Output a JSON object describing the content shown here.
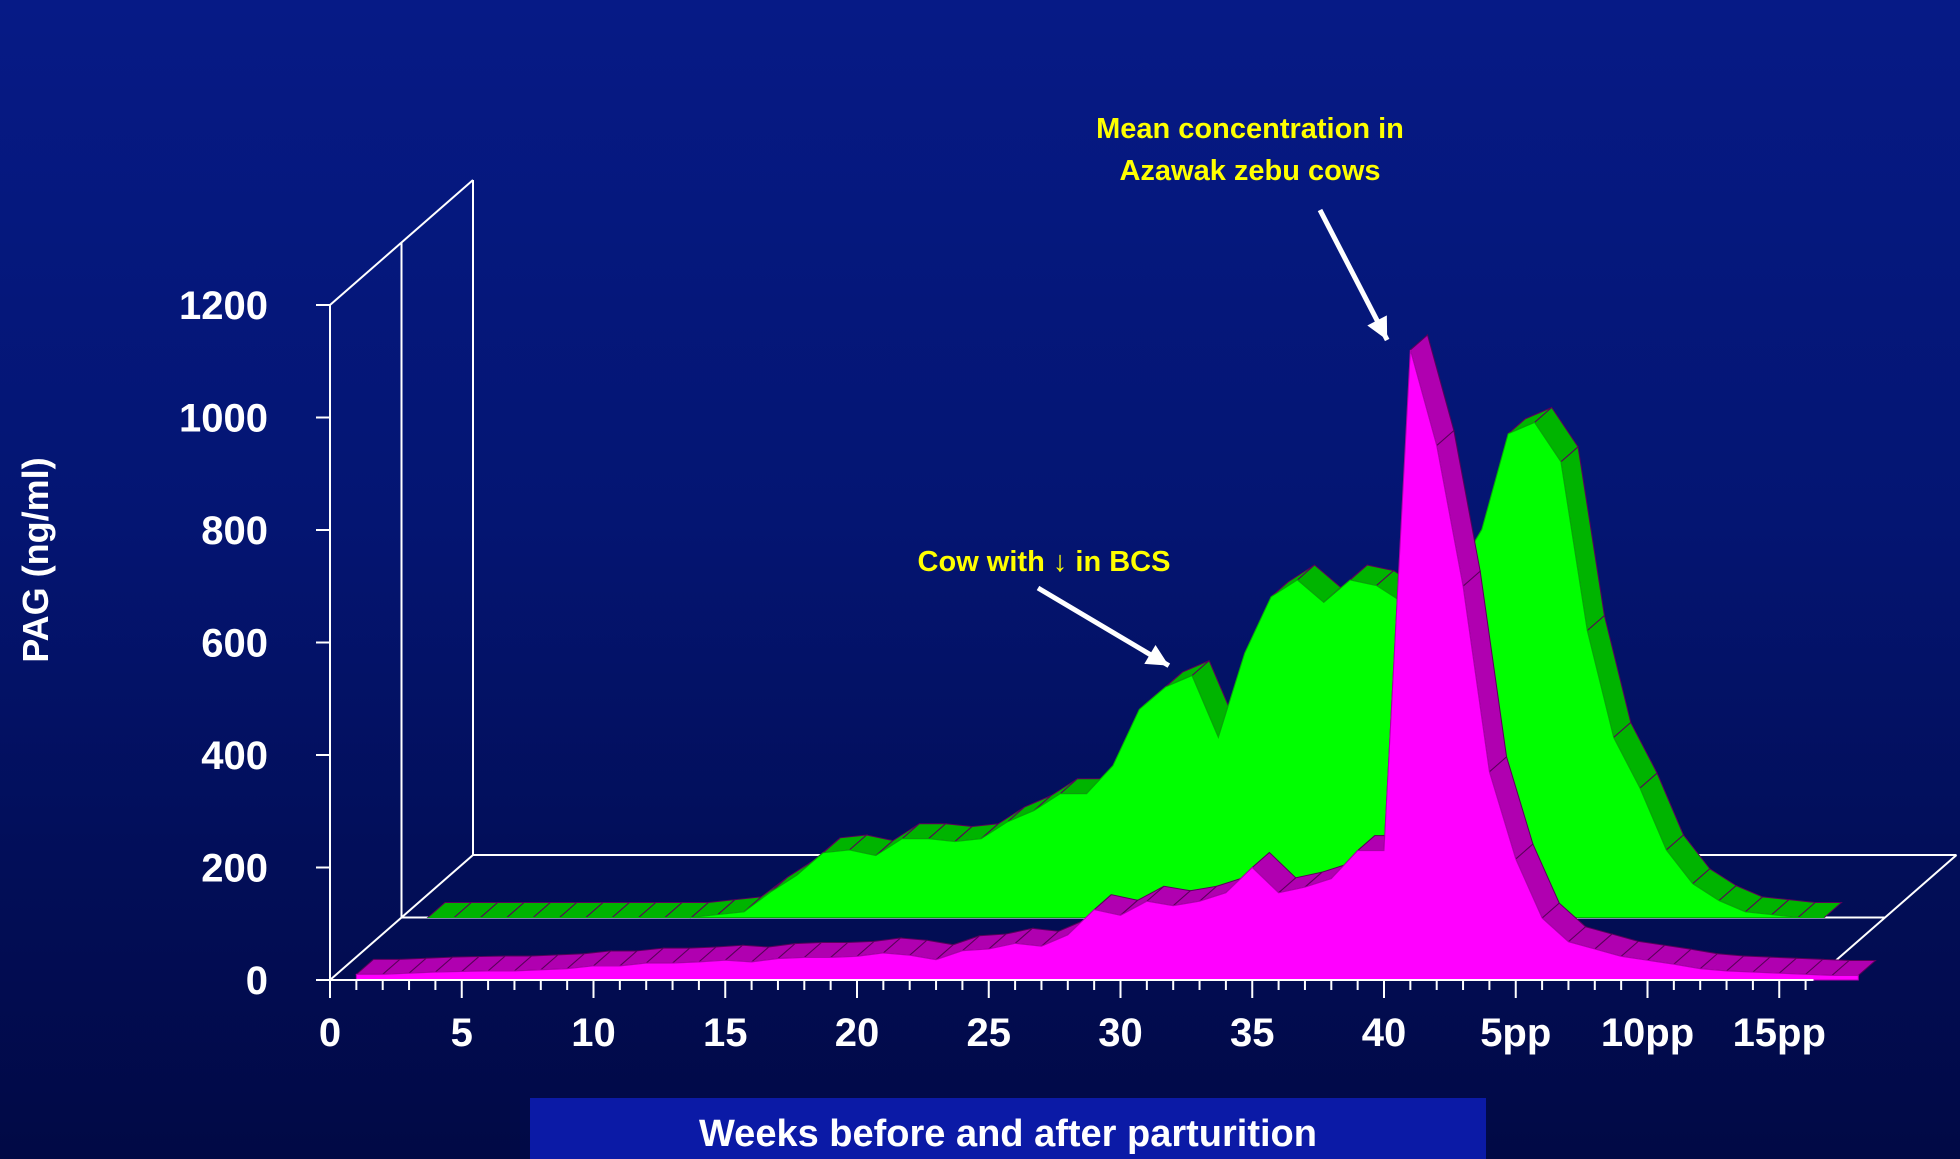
{
  "chart_data": {
    "type": "area",
    "style": "3d-ribbon",
    "ylabel": "PAG (ng/ml)",
    "xlabel": "Weeks before and after parturition",
    "ylim": [
      0,
      1200
    ],
    "y_ticks": [
      "0",
      "200",
      "400",
      "600",
      "800",
      "1000",
      "1200"
    ],
    "y_tick_values": [
      0,
      200,
      400,
      600,
      800,
      1000,
      1200
    ],
    "x_tick_labels": [
      "0",
      "5",
      "10",
      "15",
      "20",
      "25",
      "30",
      "35",
      "40",
      "5pp",
      "10pp",
      "15pp"
    ],
    "x_tick_weeks": [
      0,
      5,
      10,
      15,
      20,
      25,
      30,
      35,
      40,
      45,
      50,
      55
    ],
    "grid": false,
    "legend": "none",
    "series": [
      {
        "id": "magenta",
        "color": "#ff00ff",
        "side_color": "#b000b0",
        "weeks": [
          1,
          2,
          3,
          4,
          5,
          6,
          7,
          8,
          9,
          10,
          11,
          12,
          13,
          14,
          15,
          16,
          17,
          18,
          19,
          20,
          21,
          22,
          23,
          24,
          25,
          26,
          27,
          28,
          29,
          30,
          31,
          32,
          33,
          34,
          35,
          36,
          37,
          38,
          39,
          40,
          41,
          42,
          43,
          44,
          45,
          46,
          47,
          48,
          49,
          50,
          51,
          52,
          53,
          54,
          55,
          56,
          57,
          58
        ],
        "values": [
          10,
          10,
          12,
          14,
          15,
          16,
          16,
          18,
          20,
          25,
          25,
          30,
          30,
          32,
          35,
          32,
          38,
          40,
          40,
          42,
          48,
          44,
          36,
          52,
          55,
          65,
          60,
          80,
          125,
          115,
          140,
          132,
          140,
          155,
          200,
          155,
          165,
          180,
          230,
          230,
          1120,
          950,
          700,
          370,
          215,
          110,
          68,
          55,
          42,
          35,
          28,
          20,
          16,
          14,
          12,
          10,
          8,
          8
        ]
      },
      {
        "id": "green",
        "color": "#00ff00",
        "side_color": "#00b400",
        "weeks": [
          1,
          2,
          3,
          4,
          5,
          6,
          7,
          8,
          9,
          10,
          11,
          12,
          13,
          14,
          15,
          16,
          17,
          18,
          19,
          20,
          21,
          22,
          23,
          24,
          25,
          26,
          27,
          28,
          29,
          30,
          31,
          32,
          33,
          34,
          35,
          36,
          37,
          38,
          39,
          40,
          41,
          42,
          43,
          44,
          45,
          46,
          47,
          48,
          49,
          50,
          51,
          52,
          53,
          54
        ],
        "values": [
          0,
          0,
          0,
          0,
          0,
          0,
          0,
          0,
          0,
          0,
          0,
          5,
          10,
          45,
          75,
          115,
          120,
          110,
          140,
          140,
          135,
          140,
          170,
          190,
          220,
          220,
          270,
          370,
          410,
          430,
          320,
          470,
          570,
          600,
          560,
          600,
          590,
          560,
          560,
          610,
          690,
          860,
          880,
          810,
          510,
          320,
          230,
          120,
          60,
          30,
          10,
          5,
          0,
          0
        ]
      }
    ],
    "annotations": [
      {
        "id": "mean-concentration",
        "lines": [
          "Mean concentration in",
          "Azawak zebu cows"
        ],
        "target_series": "magenta",
        "target_week": 40.5
      },
      {
        "id": "cow-bcs",
        "lines": [
          "Cow with ↓ in BCS"
        ],
        "target_series": "green",
        "target_week": 29.5
      }
    ]
  }
}
